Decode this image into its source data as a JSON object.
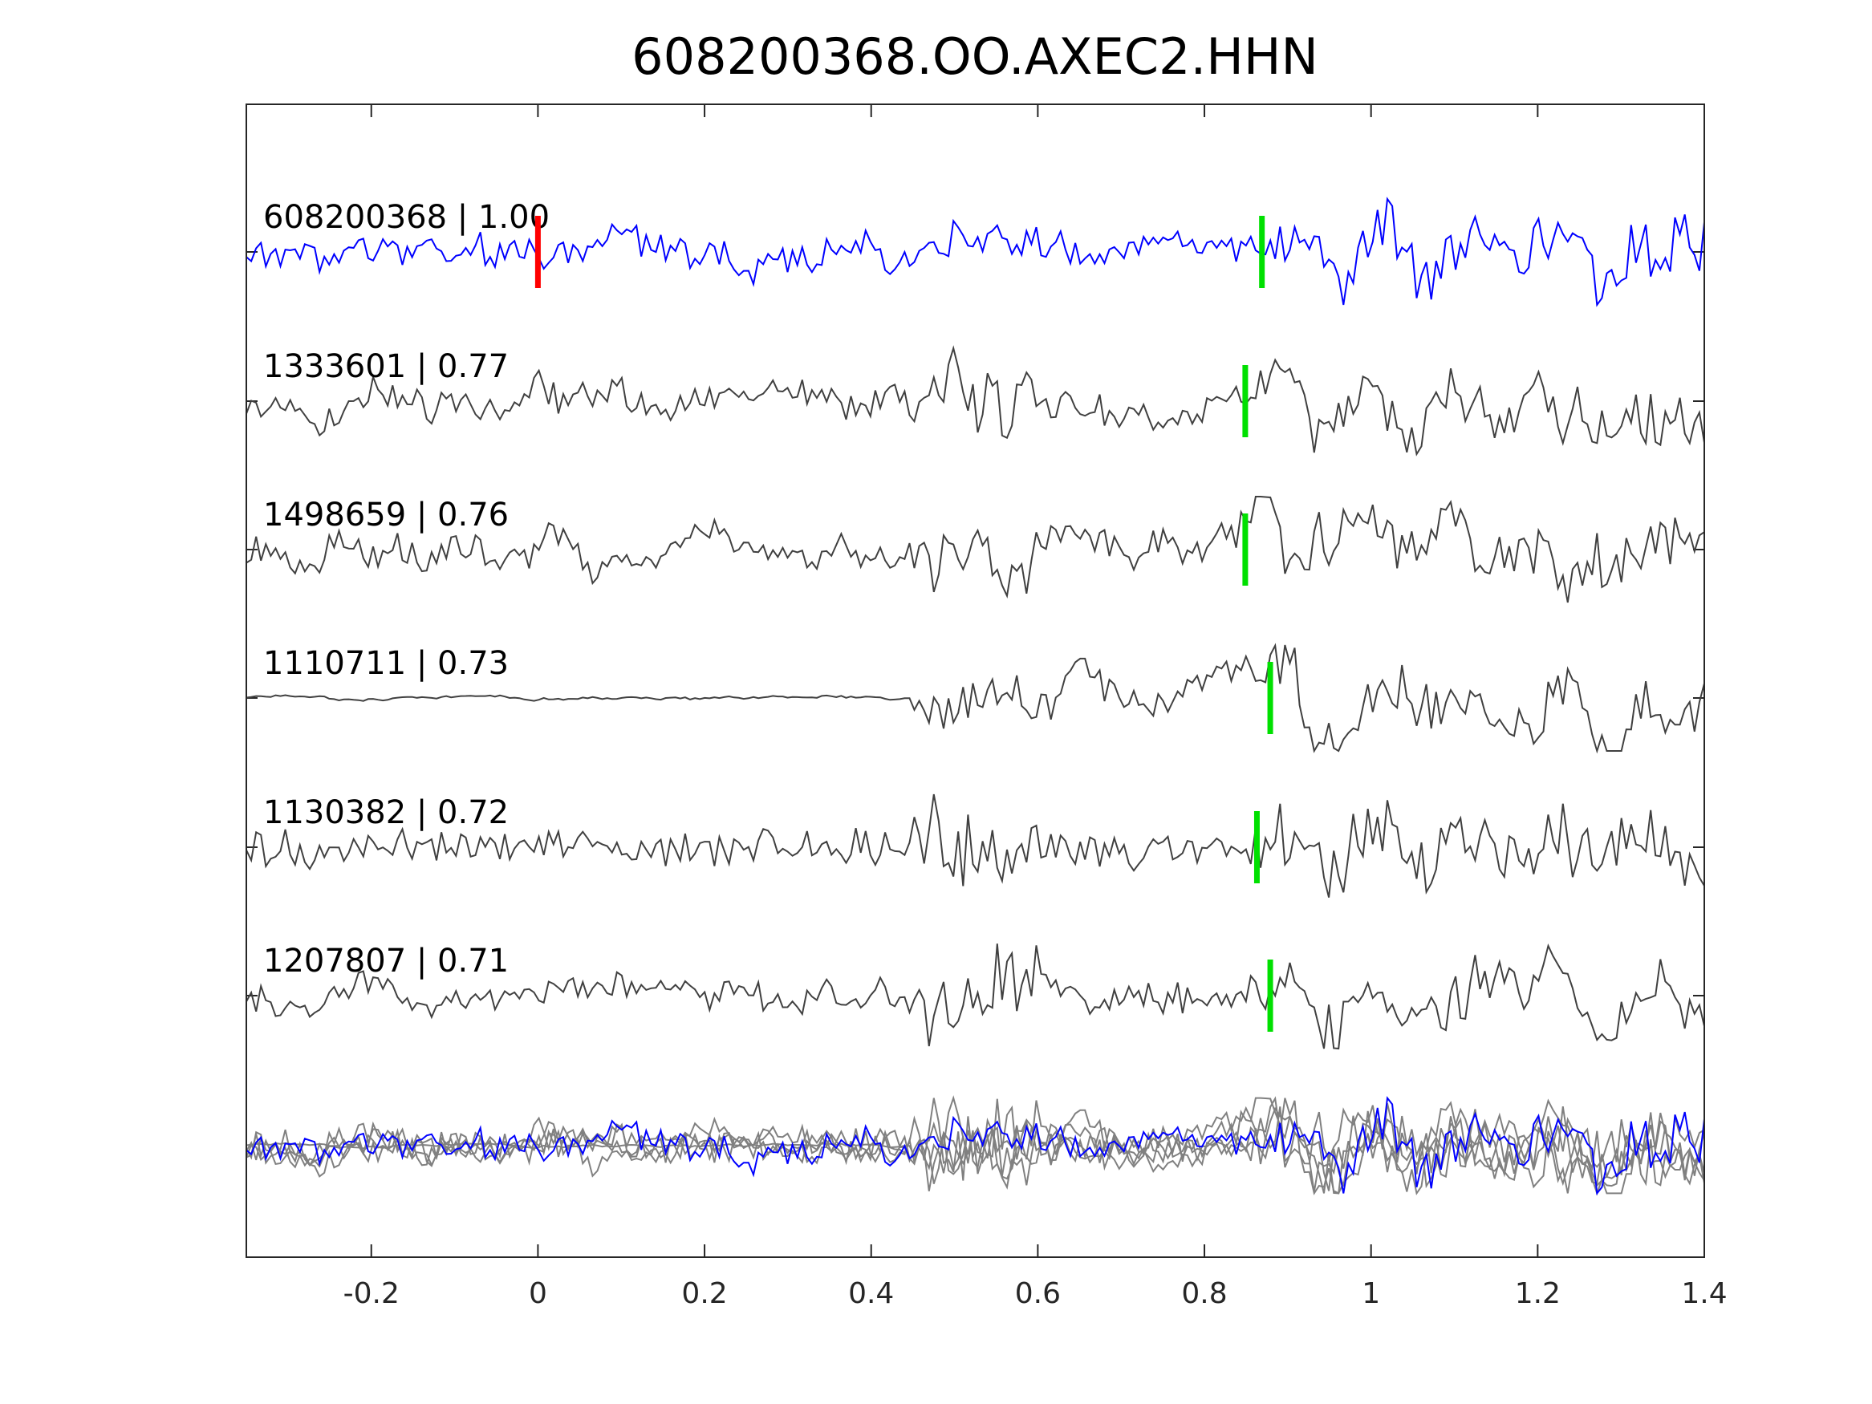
{
  "chart_data": {
    "type": "line",
    "title": "608200368.OO.AXEC2.HHN",
    "xlabel": "",
    "ylabel": "",
    "xlim": [
      -0.35,
      1.4
    ],
    "xticks": [
      -0.2,
      0,
      0.2,
      0.4,
      0.6,
      0.8,
      1,
      1.2,
      1.4
    ],
    "xtick_labels": [
      "-0.2",
      "0",
      "0.2",
      "0.4",
      "0.6",
      "0.8",
      "1",
      "1.2",
      "1.4"
    ],
    "grid": false,
    "colors": {
      "reference": "#0000ff",
      "others": "#404040",
      "stack": "#808080",
      "reference_pick": "#ff0000",
      "pick": "#00e000"
    },
    "traces": [
      {
        "id": "608200368",
        "cc": "1.00",
        "label": "608200368 | 1.00",
        "reference": true,
        "ref_pick": 0.0,
        "pick": 0.869,
        "seed": 11,
        "burst": 0.1,
        "arrival": 0.87,
        "lowfreq": 0.5
      },
      {
        "id": "1333601",
        "cc": "0.77",
        "label": "1333601 | 0.77",
        "reference": false,
        "pick": 0.849,
        "seed": 23,
        "burst": 1.0,
        "arrival": 0.85,
        "lowfreq": 0.8
      },
      {
        "id": "1498659",
        "cc": "0.76",
        "label": "1498659 | 0.76",
        "reference": false,
        "pick": 0.849,
        "seed": 37,
        "burst": 0.6,
        "arrival": 0.84,
        "lowfreq": 0.9
      },
      {
        "id": "1110711",
        "cc": "0.73",
        "label": "1110711 | 0.73",
        "reference": false,
        "pick": 0.879,
        "seed": 41,
        "burst": 0.5,
        "arrival": 0.87,
        "lowfreq": 1.0,
        "quiet": true
      },
      {
        "id": "1130382",
        "cc": "0.72",
        "label": "1130382 | 0.72",
        "reference": false,
        "pick": 0.863,
        "seed": 53,
        "burst": 1.0,
        "arrival": 0.86,
        "lowfreq": 0.3
      },
      {
        "id": "1207807",
        "cc": "0.71",
        "label": "1207807 | 0.71",
        "reference": false,
        "pick": 0.879,
        "seed": 67,
        "burst": 1.2,
        "arrival": 0.87,
        "lowfreq": 0.8
      }
    ]
  }
}
